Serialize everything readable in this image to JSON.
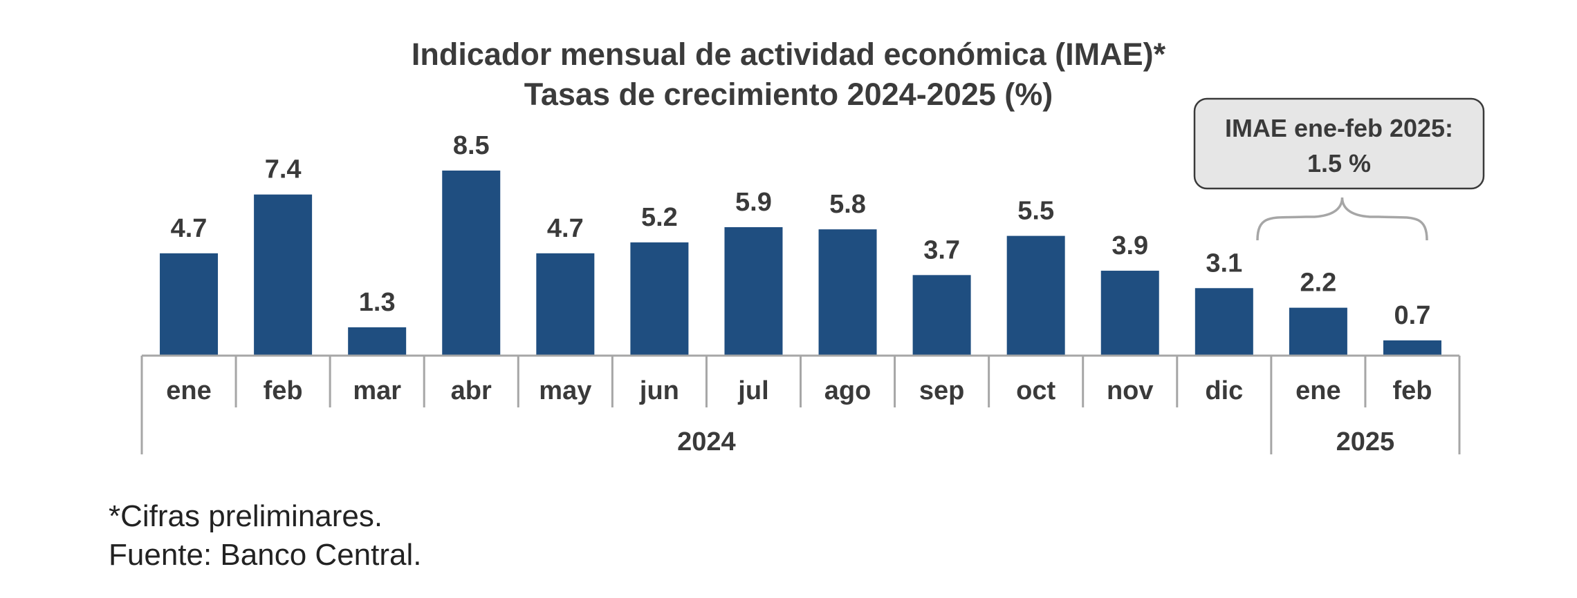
{
  "title": "Indicador mensual de actividad económica (IMAE)*",
  "subtitle": "Tasas de crecimiento 2024-2025 (%)",
  "callout": {
    "line1": "IMAE ene-feb 2025:",
    "line2": "1.5 %"
  },
  "footnotes": {
    "note": "*Cifras preliminares.",
    "source": "Fuente: Banco Central."
  },
  "colors": {
    "bar": "#1f4e80",
    "axis": "#a6a6a6",
    "text": "#3a3a3a",
    "callout_fill": "#e6e6e6",
    "callout_border": "#3a3a3a"
  },
  "chart_data": {
    "type": "bar",
    "categories": [
      "ene",
      "feb",
      "mar",
      "abr",
      "may",
      "jun",
      "jul",
      "ago",
      "sep",
      "oct",
      "nov",
      "dic",
      "ene",
      "feb"
    ],
    "values": [
      4.7,
      7.4,
      1.3,
      8.5,
      4.7,
      5.2,
      5.9,
      5.8,
      3.7,
      5.5,
      3.9,
      3.1,
      2.2,
      0.7
    ],
    "value_labels": [
      "4.7",
      "7.4",
      "1.3",
      "8.5",
      "4.7",
      "5.2",
      "5.9",
      "5.8",
      "3.7",
      "5.5",
      "3.9",
      "3.1",
      "2.2",
      "0.7"
    ],
    "year_groups": [
      {
        "label": "2024",
        "count": 12
      },
      {
        "label": "2025",
        "count": 2
      }
    ],
    "ylim": [
      0,
      8.5
    ],
    "grid": false,
    "legend": "none"
  }
}
